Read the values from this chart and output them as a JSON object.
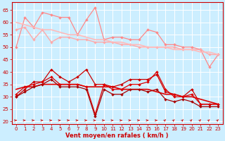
{
  "x": [
    0,
    1,
    2,
    3,
    4,
    5,
    6,
    7,
    8,
    9,
    10,
    11,
    12,
    13,
    14,
    15,
    16,
    17,
    18,
    19,
    20,
    21,
    22,
    23
  ],
  "series": [
    {
      "name": "rafales_jagged",
      "color": "#ff8888",
      "lw": 0.9,
      "marker": "D",
      "markersize": 2.0,
      "values": [
        50,
        62,
        58,
        64,
        63,
        62,
        62,
        55,
        61,
        66,
        53,
        54,
        54,
        53,
        53,
        57,
        56,
        51,
        51,
        50,
        50,
        49,
        42,
        47
      ]
    },
    {
      "name": "rafales_smooth1",
      "color": "#ffaaaa",
      "lw": 1.0,
      "marker": "D",
      "markersize": 2.0,
      "values": [
        57,
        58,
        53,
        57,
        52,
        54,
        54,
        53,
        53,
        52,
        52,
        52,
        51,
        51,
        50,
        50,
        50,
        50,
        50,
        49,
        49,
        49,
        47,
        47
      ]
    },
    {
      "name": "rafales_trend",
      "color": "#ffbbbb",
      "lw": 1.2,
      "marker": null,
      "markersize": 0,
      "values": [
        60,
        59,
        58,
        57,
        57,
        56,
        55,
        55,
        54,
        53,
        53,
        52,
        52,
        51,
        51,
        50,
        50,
        50,
        49,
        49,
        49,
        48,
        48,
        47
      ]
    },
    {
      "name": "vent_jagged_upper",
      "color": "#cc0000",
      "lw": 0.9,
      "marker": "D",
      "markersize": 2.0,
      "values": [
        30,
        33,
        36,
        36,
        41,
        38,
        36,
        38,
        41,
        35,
        35,
        34,
        35,
        37,
        37,
        37,
        39,
        32,
        31,
        30,
        33,
        27,
        27,
        27
      ]
    },
    {
      "name": "vent_jagged_mid",
      "color": "#dd0000",
      "lw": 0.9,
      "marker": "D",
      "markersize": 2.0,
      "values": [
        31,
        34,
        35,
        36,
        38,
        35,
        35,
        35,
        34,
        23,
        35,
        33,
        33,
        35,
        35,
        36,
        40,
        33,
        30,
        30,
        31,
        27,
        27,
        27
      ]
    },
    {
      "name": "vent_trend",
      "color": "#dd0000",
      "lw": 1.2,
      "marker": null,
      "markersize": 0,
      "values": [
        33,
        34,
        34,
        35,
        35,
        35,
        35,
        35,
        34,
        34,
        34,
        34,
        33,
        33,
        33,
        33,
        32,
        31,
        31,
        30,
        30,
        29,
        28,
        27
      ]
    },
    {
      "name": "vent_lower",
      "color": "#aa0000",
      "lw": 0.9,
      "marker": "D",
      "markersize": 2.0,
      "values": [
        30,
        32,
        34,
        35,
        37,
        34,
        34,
        34,
        33,
        22,
        33,
        31,
        31,
        33,
        33,
        32,
        33,
        29,
        28,
        29,
        28,
        26,
        26,
        26
      ]
    }
  ],
  "arrows": {
    "right_indices": [
      0,
      1,
      2,
      3,
      4,
      5,
      6,
      7,
      8,
      9,
      10,
      11,
      12,
      13,
      14,
      15,
      16
    ],
    "diagonal_indices": [
      17,
      18,
      19,
      20,
      21,
      22,
      23
    ],
    "y": 20.5,
    "color": "#cc0000"
  },
  "x_label": "Vent moyen/en rafales ( km/h )",
  "ylim": [
    19,
    68
  ],
  "yticks": [
    20,
    25,
    30,
    35,
    40,
    45,
    50,
    55,
    60,
    65
  ],
  "xlim": [
    -0.5,
    23.5
  ],
  "bg_color": "#cceeff",
  "grid_color": "#ffffff",
  "tick_color": "#cc0000",
  "label_color": "#cc0000",
  "tick_labelsize": 5.0,
  "xlabel_fontsize": 6.0
}
